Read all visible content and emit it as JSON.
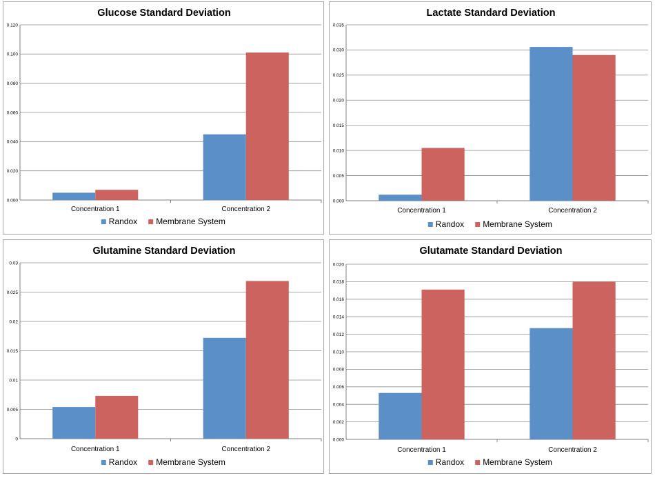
{
  "chart_data": [
    {
      "type": "bar",
      "title": "Glucose Standard Deviation",
      "categories": [
        "Concentration 1",
        "Concentration 2"
      ],
      "series": [
        {
          "name": "Randox",
          "values": [
            0.005,
            0.045
          ]
        },
        {
          "name": "Membrane System",
          "values": [
            0.007,
            0.101
          ]
        }
      ],
      "ylim": [
        0,
        0.12
      ],
      "yticks": [
        "0.000",
        "0.020",
        "0.040",
        "0.060",
        "0.080",
        "0.100",
        "0.120"
      ],
      "grid": true,
      "legend": "bottom"
    },
    {
      "type": "bar",
      "title": "Lactate Standard Deviation",
      "categories": [
        "Concentration 1",
        "Concentration 2"
      ],
      "series": [
        {
          "name": "Randox",
          "values": [
            0.0012,
            0.0306
          ]
        },
        {
          "name": "Membrane System",
          "values": [
            0.0105,
            0.029
          ]
        }
      ],
      "ylim": [
        0,
        0.035
      ],
      "yticks": [
        "0.000",
        "0.005",
        "0.010",
        "0.015",
        "0.020",
        "0.025",
        "0.030",
        "0.035"
      ],
      "grid": true,
      "legend": "bottom"
    },
    {
      "type": "bar",
      "title": "Glutamine Standard Deviation",
      "categories": [
        "Concentration 1",
        "Concentration 2"
      ],
      "series": [
        {
          "name": "Randox",
          "values": [
            0.0054,
            0.0172
          ]
        },
        {
          "name": "Membrane System",
          "values": [
            0.0073,
            0.0269
          ]
        }
      ],
      "ylim": [
        0,
        0.03
      ],
      "yticks": [
        "0",
        "0.005",
        "0.01",
        "0.015",
        "0.02",
        "0.025",
        "0.03"
      ],
      "grid": true,
      "legend": "bottom"
    },
    {
      "type": "bar",
      "title": "Glutamate Standard Deviation",
      "categories": [
        "Concentration 1",
        "Concentration 2"
      ],
      "series": [
        {
          "name": "Randox",
          "values": [
            0.0053,
            0.0127
          ]
        },
        {
          "name": "Membrane System",
          "values": [
            0.0171,
            0.018
          ]
        }
      ],
      "ylim": [
        0,
        0.02
      ],
      "yticks": [
        "0.000",
        "0.002",
        "0.004",
        "0.006",
        "0.008",
        "0.010",
        "0.012",
        "0.014",
        "0.016",
        "0.018",
        "0.020"
      ],
      "grid": true,
      "legend": "bottom"
    }
  ],
  "colors": {
    "Randox": "#5b8fc8",
    "Membrane System": "#cd635e",
    "grid": "#8c8c8c"
  }
}
